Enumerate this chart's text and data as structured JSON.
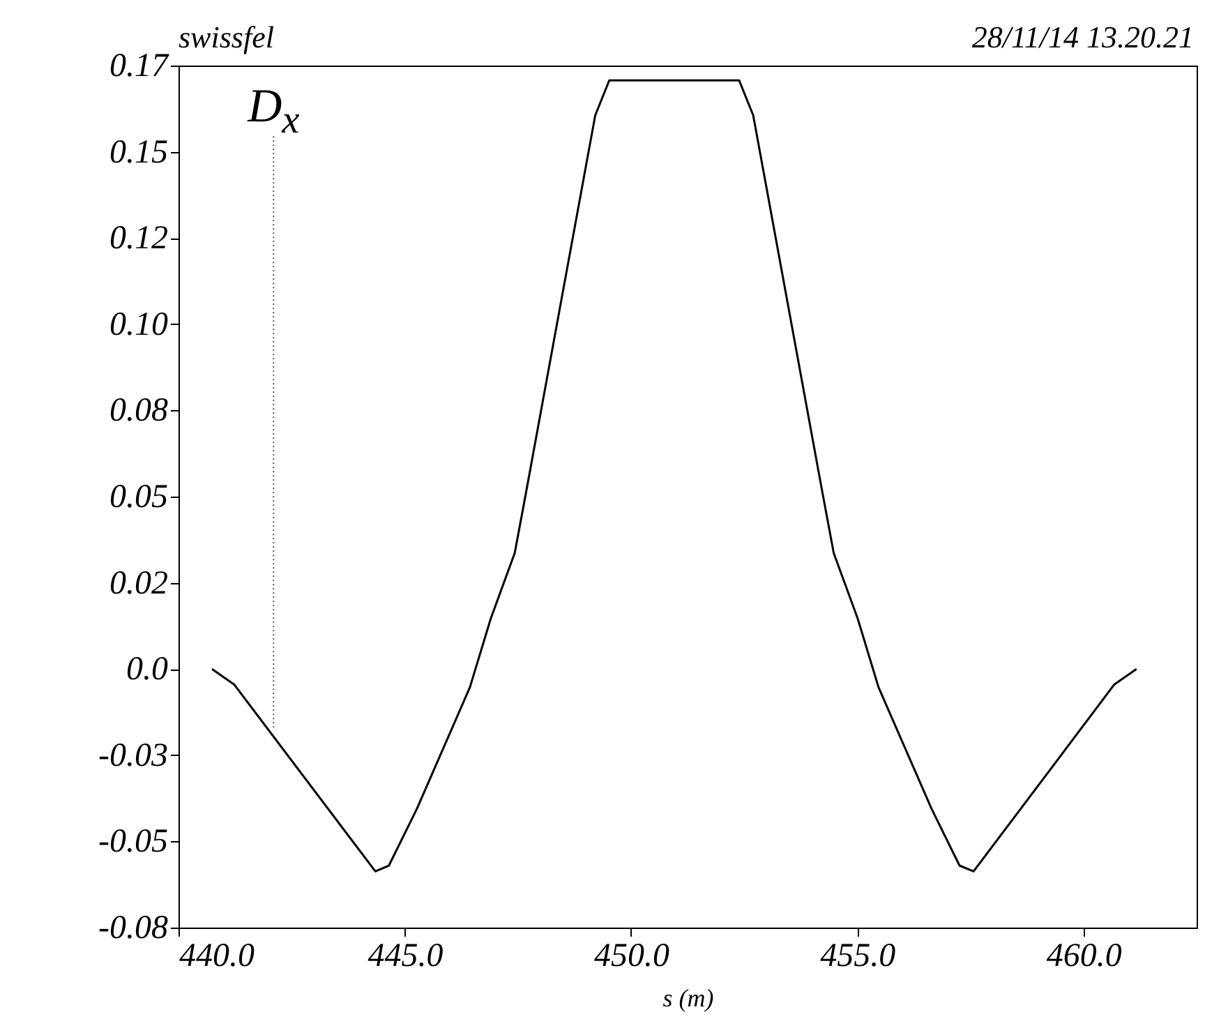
{
  "chart_data": {
    "type": "line",
    "title": "swissfel",
    "annotations": [
      "28/11/14 13.20.21",
      {
        "text": "D$_{x}$",
        "x": 442.1,
        "y": -0.017
      }
    ],
    "xlabel": "s (m)",
    "x": [
      440.74,
      441.23,
      444.35,
      444.65,
      445.27,
      446.44,
      446.9,
      447.43,
      447.7,
      449.21,
      449.52,
      452.39,
      452.7,
      454.21,
      454.48,
      455.01,
      455.47,
      456.64,
      457.26,
      457.57,
      460.68,
      461.17
    ],
    "series": [
      {
        "color": "#000000",
        "values": [
          0,
          -0.0045,
          -0.0587,
          -0.057,
          -0.0405,
          -0.0053,
          0.0146,
          0.0336,
          0.0526,
          0.1606,
          0.1707,
          0.1707,
          0.1606,
          0.0526,
          0.0336,
          0.0146,
          -0.0053,
          -0.0405,
          -0.057,
          -0.0587,
          -0.0045,
          0
        ]
      }
    ],
    "xlim": [
      440,
      462.5
    ],
    "ylim": [
      -0.075,
      0.175
    ],
    "xticks": [
      {
        "value": 440,
        "label": "440.0"
      },
      {
        "value": 445,
        "label": "445.0"
      },
      {
        "value": 450,
        "label": "450.0"
      },
      {
        "value": 455,
        "label": "455.0"
      },
      {
        "value": 460,
        "label": "460.0"
      }
    ],
    "yticks": [
      {
        "value": -0.075,
        "label": "-0.08"
      },
      {
        "value": -0.05,
        "label": "-0.05"
      },
      {
        "value": -0.025,
        "label": "-0.03"
      },
      {
        "value": 0,
        "label": "0.0"
      },
      {
        "value": 0.025,
        "label": "0.02"
      },
      {
        "value": 0.05,
        "label": "0.05"
      },
      {
        "value": 0.075,
        "label": "0.08"
      },
      {
        "value": 0.1,
        "label": "0.10"
      },
      {
        "value": 0.125,
        "label": "0.12"
      },
      {
        "value": 0.15,
        "label": "0.15"
      },
      {
        "value": 0.175,
        "label": "0.17"
      }
    ],
    "grid": false,
    "legend": false,
    "line_style": "solid",
    "marker": "none"
  }
}
